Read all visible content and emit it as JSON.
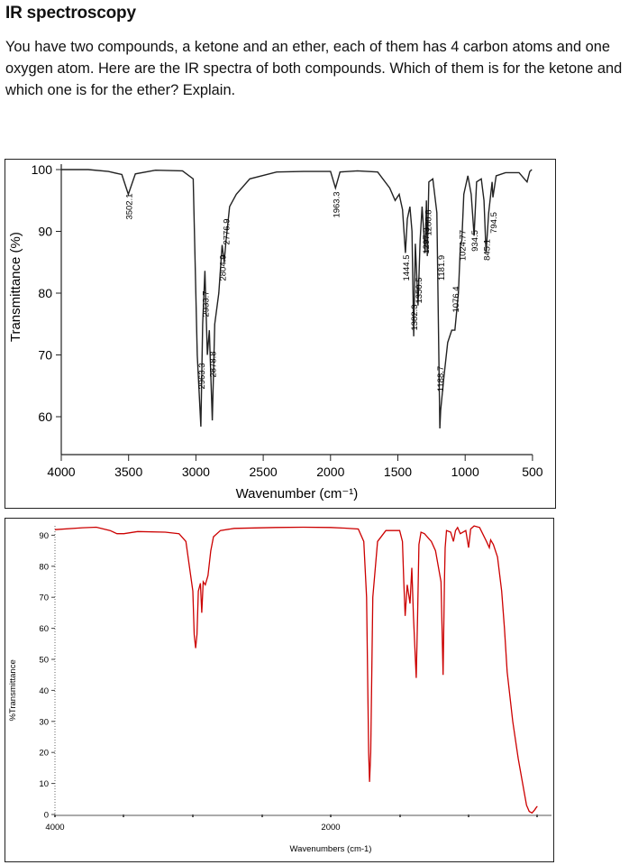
{
  "document": {
    "heading": "IR spectroscopy",
    "question": "You have two compounds, a ketone and an ether, each of them has 4 carbon atoms and one oxygen atom. Here are the IR spectra of both compounds. Which of them is for the ketone and which one is for the ether? Explain."
  },
  "chart_data": [
    {
      "type": "line",
      "title": "",
      "xlabel": "Wavenumber (cm⁻¹)",
      "ylabel": "Transmittance (%)",
      "xlim": [
        4000,
        500
      ],
      "ylim": [
        55,
        100
      ],
      "x_ticks": [
        "4000",
        "3500",
        "3000",
        "2500",
        "2000",
        "1500",
        "1000",
        "500"
      ],
      "y_ticks": [
        "100",
        "90",
        "80",
        "70",
        "60"
      ],
      "line_color": "#222222",
      "grid": false,
      "peak_labels": [
        "3502.1",
        "2963.3",
        "2933.7",
        "2878.8",
        "2804.9",
        "2776.9",
        "1963.3",
        "1444.5",
        "1382.3",
        "1350.5",
        "1297.3",
        "1280.8",
        "1188.7",
        "1181.9",
        "1076.4",
        "1024.77",
        "934.5",
        "845.1",
        "794.5"
      ],
      "x": [
        4000,
        3800,
        3650,
        3550,
        3502,
        3450,
        3300,
        3100,
        3020,
        2990,
        2963,
        2950,
        2933,
        2915,
        2900,
        2878,
        2860,
        2830,
        2805,
        2790,
        2777,
        2750,
        2700,
        2600,
        2400,
        2200,
        2000,
        1963,
        1930,
        1800,
        1650,
        1560,
        1520,
        1490,
        1465,
        1444,
        1430,
        1410,
        1395,
        1382,
        1370,
        1350,
        1335,
        1320,
        1297,
        1288,
        1281,
        1270,
        1240,
        1210,
        1188,
        1182,
        1160,
        1130,
        1100,
        1076,
        1050,
        1035,
        1025,
        1010,
        980,
        955,
        934,
        915,
        880,
        860,
        845,
        825,
        800,
        794,
        770,
        700,
        600,
        560,
        540,
        520,
        505
      ],
      "y": [
        100,
        100,
        99.7,
        99.2,
        96,
        99.3,
        99.9,
        99.8,
        98.5,
        70,
        58.4,
        75,
        83.6,
        70,
        74,
        59.4,
        75,
        80,
        87.8,
        85,
        88.3,
        94,
        96,
        98.5,
        99.6,
        99.7,
        99.7,
        97,
        99.6,
        99.8,
        99.6,
        97,
        95,
        96,
        93.5,
        86.5,
        92,
        94,
        90,
        73,
        88,
        78,
        88.5,
        94,
        86.5,
        95,
        86,
        98,
        98.5,
        93,
        58.1,
        61,
        66,
        72,
        74,
        74,
        80,
        88,
        88.5,
        96,
        99,
        96,
        89.3,
        98,
        98.5,
        95,
        86.5,
        93,
        98,
        95.5,
        99,
        99.5,
        99.5,
        98.5,
        98,
        99.7,
        100
      ]
    },
    {
      "type": "line",
      "title": "",
      "xlabel": "Wavenumbers (cm-1)",
      "ylabel": "%Transmittance",
      "xlim": [
        4000,
        500
      ],
      "ylim": [
        -2,
        94
      ],
      "x_ticks": [
        "4000",
        "2000"
      ],
      "y_ticks": [
        "90",
        "80",
        "70",
        "60",
        "50",
        "40",
        "30",
        "20",
        "10",
        "0"
      ],
      "line_color": "#cc0000",
      "grid": false,
      "x": [
        4000,
        3800,
        3700,
        3600,
        3550,
        3500,
        3400,
        3200,
        3100,
        3050,
        3000,
        2990,
        2980,
        2970,
        2960,
        2945,
        2935,
        2925,
        2910,
        2890,
        2870,
        2850,
        2800,
        2700,
        2400,
        2200,
        2000,
        1900,
        1800,
        1760,
        1740,
        1725,
        1718,
        1710,
        1695,
        1660,
        1600,
        1500,
        1480,
        1470,
        1460,
        1445,
        1425,
        1412,
        1400,
        1380,
        1370,
        1360,
        1345,
        1320,
        1270,
        1240,
        1200,
        1185,
        1175,
        1170,
        1160,
        1130,
        1110,
        1095,
        1080,
        1060,
        1020,
        1000,
        985,
        960,
        920,
        870,
        850,
        840,
        820,
        790,
        760,
        740,
        720,
        680,
        640,
        600,
        580,
        560,
        540,
        520,
        505,
        500
      ],
      "y": [
        91.8,
        92.4,
        92.6,
        91.5,
        90.5,
        90.5,
        91.2,
        91,
        90.5,
        88,
        72,
        58,
        53.6,
        58,
        72,
        74.5,
        65,
        75,
        74,
        77,
        85,
        89.5,
        91.5,
        92.2,
        92.5,
        92.6,
        92.5,
        92.3,
        92,
        88,
        70,
        20,
        10.5,
        20,
        70,
        88,
        91.5,
        91.5,
        88,
        75,
        64,
        74,
        68,
        79.5,
        64,
        44,
        64,
        87,
        91,
        90.5,
        88,
        85,
        75,
        45,
        75,
        86,
        91.5,
        91,
        88,
        91.5,
        92.5,
        90.5,
        91.5,
        86,
        92,
        93,
        92.5,
        88,
        86,
        88.5,
        87,
        83,
        72,
        60,
        46,
        30,
        18,
        8,
        3,
        1,
        0.5,
        1.5,
        2.5,
        2.5
      ]
    }
  ]
}
